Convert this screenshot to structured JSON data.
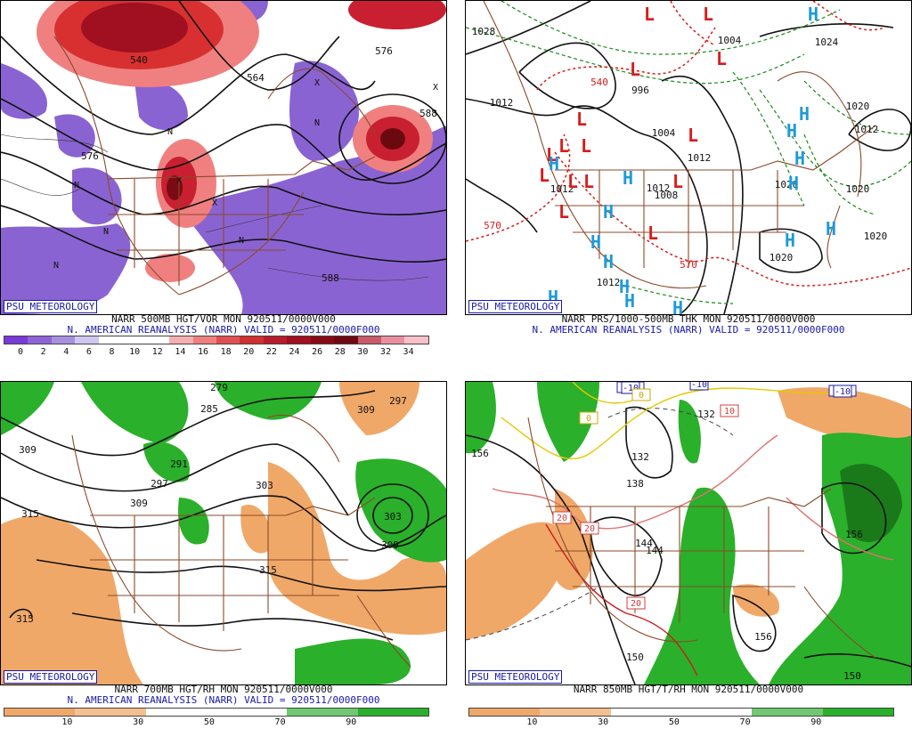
{
  "panels": [
    {
      "id": "p1",
      "badge": "PSU METEOROLOGY",
      "caption1": "NARR 500MB HGT/VOR MON 920511/0000V000",
      "caption2": "N. AMERICAN REANALYSIS (NARR) VALID = 920511/0000F000",
      "colorbar_ticks": [
        "0",
        "2",
        "4",
        "6",
        "8",
        "10",
        "12",
        "14",
        "16",
        "18",
        "20",
        "22",
        "24",
        "26",
        "28",
        "30",
        "32",
        "34"
      ],
      "contour_labels": [
        "540",
        "564",
        "576",
        "588",
        "576",
        "588"
      ],
      "symbol_labels": [
        "N",
        "N",
        "N",
        "N",
        "N",
        "N",
        "X",
        "X",
        "X",
        "X"
      ]
    },
    {
      "id": "p2",
      "badge": "PSU METEOROLOGY",
      "caption1": "NARR PRS/1000-500MB THK MON 920511/0000V000",
      "caption2": "N. AMERICAN REANALYSIS (NARR) VALID = 920511/0000F000",
      "contour_labels": [
        "1028",
        "1004",
        "996",
        "1012",
        "1012",
        "1004",
        "1012",
        "1020",
        "1020",
        "1020",
        "1020",
        "1024",
        "1012",
        "1012",
        "1020",
        "570",
        "570",
        "540",
        "1012",
        "1008"
      ],
      "low_symbols": [
        "L",
        "L",
        "L",
        "L",
        "L",
        "L",
        "L",
        "L",
        "L",
        "L",
        "L",
        "L",
        "L",
        "L",
        "L"
      ],
      "high_symbols": [
        "H",
        "H",
        "H",
        "H",
        "H",
        "H",
        "H",
        "H",
        "H",
        "H",
        "H",
        "H",
        "H",
        "H",
        "H",
        "H"
      ]
    },
    {
      "id": "p3",
      "badge": "PSU METEOROLOGY",
      "caption1": "NARR 700MB HGT/RH MON 920511/0000V000",
      "caption2": "N. AMERICAN REANALYSIS (NARR) VALID = 920511/0000F000",
      "colorbar_ticks": [
        "10",
        "30",
        "50",
        "70",
        "90"
      ],
      "contour_labels": [
        "279",
        "285",
        "291",
        "297",
        "303",
        "309",
        "315",
        "309",
        "303",
        "309",
        "297",
        "309",
        "315",
        "315"
      ]
    },
    {
      "id": "p4",
      "badge": "PSU METEOROLOGY",
      "caption1": "NARR 850MB HGT/T/RH MON 920511/0000V000",
      "caption2": "",
      "colorbar_ticks": [
        "10",
        "30",
        "50",
        "70",
        "90"
      ],
      "contour_labels": [
        "156",
        "132",
        "138",
        "144",
        "144",
        "150",
        "156",
        "156",
        "150",
        "132"
      ],
      "temp_labels": [
        "-10",
        "-10",
        "-10",
        "0",
        "0",
        "10",
        "20",
        "20",
        "20"
      ]
    }
  ],
  "colors": {
    "brown_map": "#8b4a2a",
    "vort_purple": "#8a63d2",
    "vort_red": "#b81c2a",
    "rh_orange": "#f0a868",
    "rh_green": "#2ab02a",
    "thk_red": "#d81c1c",
    "thk_green": "#1a8a1a",
    "high_blue": "#1e9ad8",
    "badge_blue": "#1a1aa8"
  }
}
